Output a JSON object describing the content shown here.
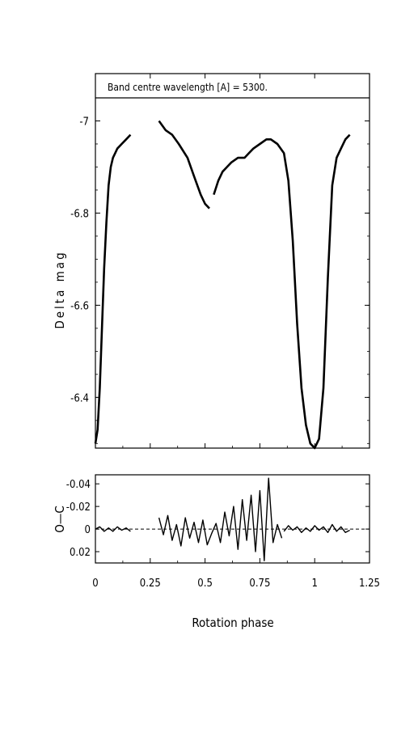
{
  "chart_data": [
    {
      "type": "line",
      "panel": "main",
      "title": "Band centre wavelength [A] = 5300.",
      "xlabel": "",
      "ylabel": "Delta mag",
      "xlim": [
        0,
        1.25
      ],
      "ylim": [
        -6.29,
        -7.05
      ],
      "y_inverted": true,
      "yticks": [
        -7,
        -6.8,
        -6.6,
        -6.4
      ],
      "ytick_labels": [
        "-7",
        "-6.8",
        "-6.6",
        "-6.4"
      ],
      "series": [
        {
          "segments": [
            {
              "x": [
                0.0,
                0.01,
                0.02,
                0.03,
                0.04,
                0.05,
                0.06,
                0.07,
                0.08,
                0.09,
                0.1,
                0.12,
                0.14,
                0.16
              ],
              "y": [
                -6.3,
                -6.33,
                -6.42,
                -6.55,
                -6.68,
                -6.78,
                -6.86,
                -6.9,
                -6.92,
                -6.93,
                -6.94,
                -6.95,
                -6.96,
                -6.97
              ]
            },
            {
              "x": [
                0.29,
                0.32,
                0.35,
                0.38,
                0.42,
                0.45,
                0.48,
                0.5,
                0.52
              ],
              "y": [
                -7.0,
                -6.98,
                -6.97,
                -6.95,
                -6.92,
                -6.88,
                -6.84,
                -6.82,
                -6.81
              ]
            },
            {
              "x": [
                0.54,
                0.56,
                0.58,
                0.6,
                0.62,
                0.65,
                0.68,
                0.7,
                0.72,
                0.75,
                0.78,
                0.8,
                0.83,
                0.86,
                0.88,
                0.9,
                0.92,
                0.94,
                0.96,
                0.98,
                1.0,
                1.02,
                1.04,
                1.06,
                1.08,
                1.1,
                1.12,
                1.14,
                1.16
              ],
              "y": [
                -6.84,
                -6.87,
                -6.89,
                -6.9,
                -6.91,
                -6.92,
                -6.92,
                -6.93,
                -6.94,
                -6.95,
                -6.96,
                -6.96,
                -6.95,
                -6.93,
                -6.87,
                -6.74,
                -6.56,
                -6.42,
                -6.34,
                -6.3,
                -6.29,
                -6.31,
                -6.42,
                -6.66,
                -6.86,
                -6.92,
                -6.94,
                -6.96,
                -6.97
              ]
            }
          ]
        }
      ]
    },
    {
      "type": "line",
      "panel": "residuals",
      "xlabel": "Rotation phase",
      "ylabel": "O—C",
      "xlim": [
        0,
        1.25
      ],
      "ylim": [
        0.03,
        -0.048
      ],
      "y_inverted": true,
      "reference_line": {
        "y": 0,
        "style": "dashed"
      },
      "xticks": [
        0,
        0.25,
        0.5,
        0.75,
        1,
        1.25
      ],
      "xtick_labels": [
        "0",
        "0.25",
        "0.5",
        "0.75",
        "1",
        "1.25"
      ],
      "yticks": [
        -0.04,
        -0.02,
        0,
        0.02
      ],
      "ytick_labels": [
        "-0.04",
        "-0.02",
        "0",
        "0.02"
      ],
      "series": [
        {
          "segments": [
            {
              "x": [
                0.0,
                0.02,
                0.04,
                0.06,
                0.08,
                0.1,
                0.12,
                0.14,
                0.16
              ],
              "y": [
                0.0,
                -0.002,
                0.002,
                -0.001,
                0.002,
                -0.002,
                0.001,
                -0.001,
                0.002
              ]
            },
            {
              "x": [
                0.29,
                0.31,
                0.33,
                0.35,
                0.37,
                0.39,
                0.41,
                0.43,
                0.45,
                0.47,
                0.49,
                0.51,
                0.53,
                0.55,
                0.57,
                0.59,
                0.61,
                0.63,
                0.65,
                0.67,
                0.69,
                0.71,
                0.73,
                0.75,
                0.77,
                0.79,
                0.81,
                0.83,
                0.85
              ],
              "y": [
                -0.01,
                0.005,
                -0.012,
                0.01,
                -0.004,
                0.015,
                -0.01,
                0.008,
                -0.006,
                0.012,
                -0.008,
                0.014,
                0.004,
                -0.005,
                0.012,
                -0.015,
                0.006,
                -0.02,
                0.018,
                -0.026,
                0.01,
                -0.03,
                0.02,
                -0.034,
                0.028,
                -0.045,
                0.012,
                -0.004,
                0.008
              ]
            },
            {
              "x": [
                0.86,
                0.88,
                0.9,
                0.92,
                0.94,
                0.96,
                0.98,
                1.0,
                1.02,
                1.04,
                1.06,
                1.08,
                1.1,
                1.12,
                1.14,
                1.16
              ],
              "y": [
                0.002,
                -0.003,
                0.001,
                -0.002,
                0.003,
                -0.001,
                0.002,
                -0.003,
                0.001,
                -0.002,
                0.003,
                -0.004,
                0.002,
                -0.002,
                0.003,
                0.001
              ]
            }
          ]
        }
      ]
    }
  ]
}
